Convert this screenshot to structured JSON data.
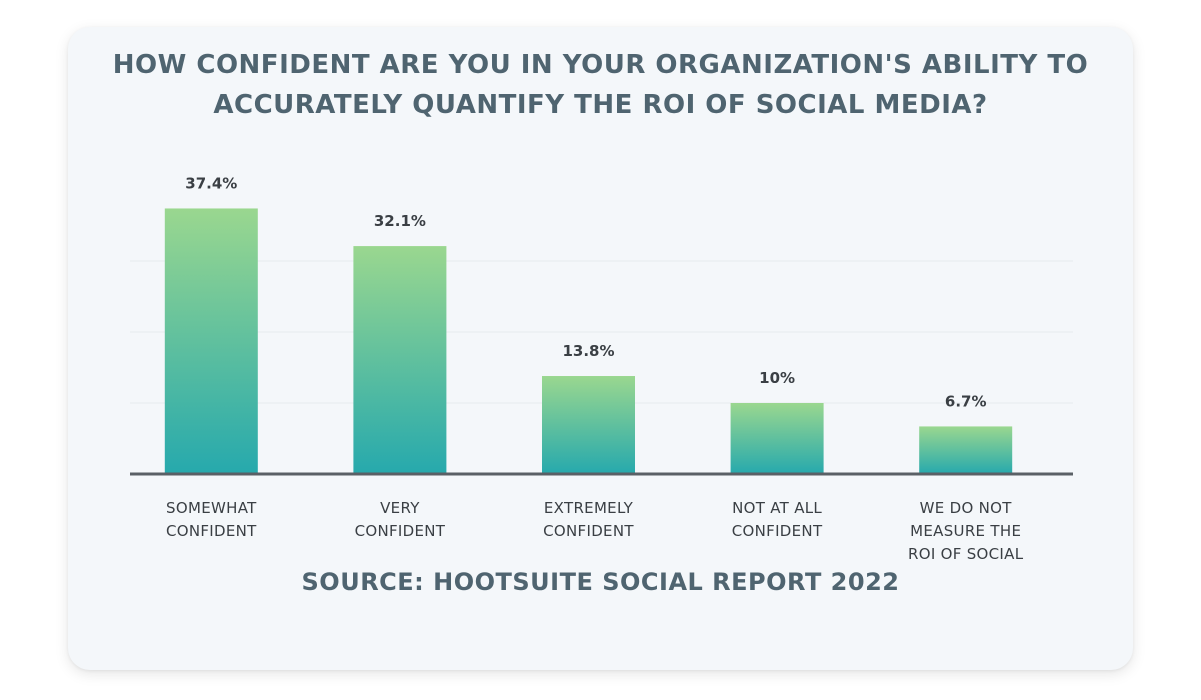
{
  "chart_data": {
    "type": "bar",
    "title": "HOW CONFIDENT ARE YOU IN YOUR ORGANIZATION'S ABILITY TO\nACCURATELY QUANTIFY THE ROI OF SOCIAL MEDIA?",
    "categories": [
      [
        "SOMEWHAT",
        "CONFIDENT"
      ],
      [
        "VERY",
        "CONFIDENT"
      ],
      [
        "EXTREMELY",
        "CONFIDENT"
      ],
      [
        "NOT AT ALL",
        "CONFIDENT"
      ],
      [
        "WE DO NOT",
        "MEASURE THE",
        "ROI OF SOCIAL"
      ]
    ],
    "values": [
      37.4,
      32.1,
      13.8,
      10,
      6.7
    ],
    "value_labels": [
      "37.4%",
      "32.1%",
      "13.8%",
      "10%",
      "6.7%"
    ],
    "xlabel": "",
    "ylabel": "",
    "ylim": [
      0,
      40
    ],
    "grid": true,
    "legend": "none",
    "colors": {
      "bar_top": "#9ad78f",
      "bar_bottom": "#26a9ad",
      "axis": "#5a6066",
      "grid": "#e6ebef"
    }
  },
  "source": "SOURCE: HOOTSUITE SOCIAL REPORT 2022"
}
